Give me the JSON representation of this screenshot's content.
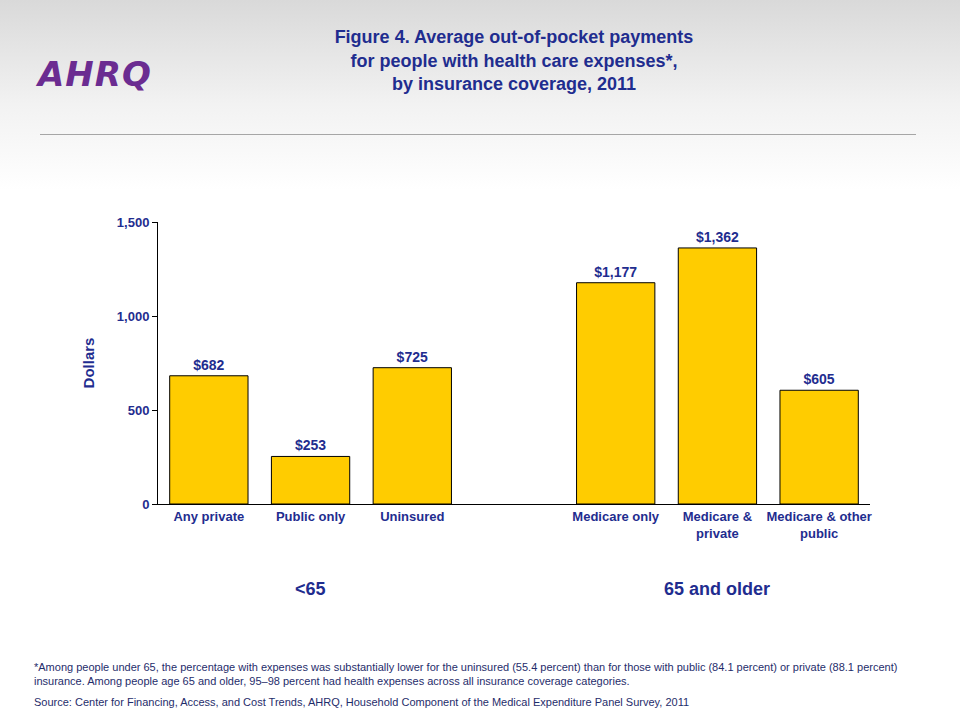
{
  "logo": "AHRQ",
  "chart_data": {
    "type": "bar",
    "title": "Figure 4. Average out-of-pocket payments\nfor people with health care expenses*,\nby insurance coverage, 2011",
    "y_label": "Dollars",
    "categories": [
      "Any private",
      "Public only",
      "Uninsured",
      null,
      "Medicare only",
      "Medicare & private",
      "Medicare & other public"
    ],
    "values": [
      682,
      253,
      725,
      null,
      1177,
      1362,
      605
    ],
    "value_labels": [
      "$682",
      "$253",
      "$725",
      null,
      "$1,177",
      "$1,362",
      "$605"
    ],
    "color": "#ffcc00",
    "ylim": [
      0,
      1500
    ],
    "yticks": [
      0,
      500,
      {
        "value": 1000,
        "label": "1,000"
      },
      {
        "value": 1500,
        "label": "1,500"
      }
    ],
    "grid": false,
    "data_labels": true,
    "groups": [
      {
        "label": "<65",
        "categories": [
          "Any private",
          "Public only",
          "Uninsured"
        ]
      },
      {
        "label": "65 and older",
        "categories": [
          "Medicare only",
          "Medicare & private",
          "Medicare & other public"
        ]
      }
    ]
  },
  "footnote": "*Among people under 65, the percentage with expenses was substantially lower for the uninsured (55.4 percent) than for those with public (84.1 percent) or private (88.1 percent) insurance. Among people age 65 and older, 95–98 percent had health expenses across all insurance coverage categories.",
  "source": "Source: Center for Financing, Access, and Cost Trends, AHRQ, Household Component of the Medical Expenditure Panel Survey, 2011"
}
